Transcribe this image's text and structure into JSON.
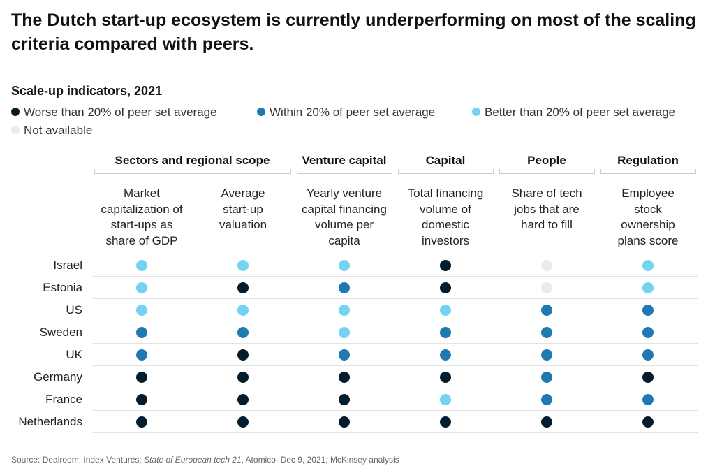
{
  "title": "The Dutch start-up ecosystem is currently underperforming on most of the scaling criteria compared with peers.",
  "colors": {
    "worse": "#051c2c",
    "within": "#1f7ab3",
    "better": "#72d3f2",
    "na": "#ebebeb"
  },
  "chart_data": {
    "type": "table",
    "title": "Scale-up indicators, 2021",
    "legend": [
      {
        "key": "worse",
        "label": "Worse than 20% of peer set average"
      },
      {
        "key": "within",
        "label": "Within 20% of peer set average"
      },
      {
        "key": "better",
        "label": "Better than 20% of peer set average"
      },
      {
        "key": "na",
        "label": "Not available"
      }
    ],
    "groups": [
      {
        "label": "Sectors and regional scope",
        "span": 2
      },
      {
        "label": "Venture capital",
        "span": 1
      },
      {
        "label": "Capital",
        "span": 1
      },
      {
        "label": "People",
        "span": 1
      },
      {
        "label": "Regulation",
        "span": 1
      }
    ],
    "columns": [
      [
        "Market",
        "capitalization of",
        "start-ups as",
        "share of GDP"
      ],
      [
        "Average",
        "start-up",
        "valuation"
      ],
      [
        "Yearly venture",
        "capital financing",
        "volume per",
        "capita"
      ],
      [
        "Total financing",
        "volume of",
        "domestic",
        "investors"
      ],
      [
        "Share of tech",
        "jobs that are",
        "hard to fill"
      ],
      [
        "Employee",
        "stock",
        "ownership",
        "plans score"
      ]
    ],
    "rows": [
      {
        "country": "Israel",
        "values": [
          "better",
          "better",
          "better",
          "worse",
          "na",
          "better"
        ]
      },
      {
        "country": "Estonia",
        "values": [
          "better",
          "worse",
          "within",
          "worse",
          "na",
          "better"
        ]
      },
      {
        "country": "US",
        "values": [
          "better",
          "better",
          "better",
          "better",
          "within",
          "within"
        ]
      },
      {
        "country": "Sweden",
        "values": [
          "within",
          "within",
          "better",
          "within",
          "within",
          "within"
        ]
      },
      {
        "country": "UK",
        "values": [
          "within",
          "worse",
          "within",
          "within",
          "within",
          "within"
        ]
      },
      {
        "country": "Germany",
        "values": [
          "worse",
          "worse",
          "worse",
          "worse",
          "within",
          "worse"
        ]
      },
      {
        "country": "France",
        "values": [
          "worse",
          "worse",
          "worse",
          "better",
          "within",
          "within"
        ]
      },
      {
        "country": "Netherlands",
        "values": [
          "worse",
          "worse",
          "worse",
          "worse",
          "worse",
          "worse"
        ]
      }
    ]
  },
  "source": {
    "prefix": "Source: Dealroom; Index Ventures; ",
    "italic": "State of European tech 21",
    "suffix": ", Atomico, Dec 9, 2021; McKinsey analysis"
  }
}
